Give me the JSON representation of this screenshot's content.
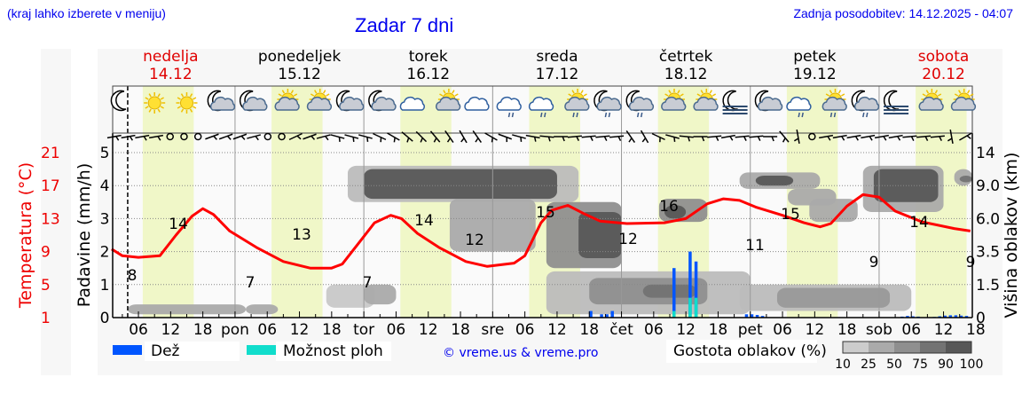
{
  "header": {
    "hint": "(kraj lahko izberete v meniju)",
    "title": "Zadar 7 dni",
    "updated": "Zadnja posodobitev: 14.12.2025 - 04:07"
  },
  "days": [
    {
      "name": "nedelja",
      "date": "14.12",
      "weekend": true
    },
    {
      "name": "ponedeljek",
      "date": "15.12",
      "weekend": false
    },
    {
      "name": "torek",
      "date": "16.12",
      "weekend": false
    },
    {
      "name": "sreda",
      "date": "17.12",
      "weekend": false
    },
    {
      "name": "četrtek",
      "date": "18.12",
      "weekend": false
    },
    {
      "name": "petek",
      "date": "19.12",
      "weekend": false
    },
    {
      "name": "sobota",
      "date": "20.12",
      "weekend": true
    }
  ],
  "axes": {
    "temp_label": "Temperatura (°C)",
    "precip_label": "Padavine (mm/h)",
    "cloud_label": "Višina oblakov (km)",
    "temp_ticks": [
      "21",
      "17",
      "13",
      "9",
      "5",
      "1"
    ],
    "precip_ticks": [
      "5",
      "4",
      "3",
      "2",
      "1",
      "0"
    ],
    "cloud_ticks": [
      "14",
      "9.0",
      "6.0",
      "3.5",
      "1.5",
      "0"
    ],
    "x_ticks": [
      "06",
      "12",
      "18",
      "pon",
      "06",
      "12",
      "18",
      "tor",
      "06",
      "12",
      "18",
      "sre",
      "06",
      "12",
      "18",
      "čet",
      "06",
      "12",
      "18",
      "pet",
      "06",
      "12",
      "18",
      "sob",
      "06",
      "12",
      "18"
    ]
  },
  "legend": {
    "rain": "Dež",
    "rain_color": "#0055ff",
    "shower": "Možnost ploh",
    "shower_color": "#11ddcc",
    "copyright": "© vreme.us & vreme.pro",
    "density_label": "Gostota oblakov (%)",
    "density_ticks": [
      "10",
      "25",
      "50",
      "75",
      "90",
      "100"
    ],
    "density_colors": [
      "#cccccc",
      "#aaaaaa",
      "#8f8f8f",
      "#737373",
      "#575757"
    ]
  },
  "icons": [
    "moon",
    "sun",
    "sun",
    "moon-cloud",
    "moon-cloud",
    "sun-cloud",
    "sun-cloud",
    "moon-cloud",
    "moon-cloud",
    "cloud",
    "sun-cloud",
    "cloud",
    "cloud-rain",
    "cloud-rain",
    "sun-cloud-rain",
    "moon-cloud-rain",
    "moon-cloud-rain",
    "sun-cloud",
    "sun-cloud",
    "moon-fog",
    "moon-cloud",
    "cloud-rain",
    "sun-cloud-rain",
    "moon-cloud-rain",
    "moon-fog",
    "sun-cloud",
    "sun-cloud",
    "moon-fog"
  ],
  "chart_data": {
    "type": "line",
    "title": "Zadar 7 dni",
    "x_range_hours": [
      1,
      161
    ],
    "temperature": {
      "name": "Temperatura (°C)",
      "color": "#ff0000",
      "ylim": [
        -1,
        23
      ],
      "points_hours_values": [
        [
          1,
          9.3
        ],
        [
          3,
          8.5
        ],
        [
          6,
          8.3
        ],
        [
          10,
          8.5
        ],
        [
          13,
          11
        ],
        [
          16,
          13.3
        ],
        [
          18,
          14.2
        ],
        [
          20,
          13.5
        ],
        [
          23,
          11.5
        ],
        [
          28,
          9.5
        ],
        [
          33,
          7.8
        ],
        [
          38,
          7
        ],
        [
          42,
          7
        ],
        [
          44,
          7.5
        ],
        [
          47,
          10
        ],
        [
          50,
          12.5
        ],
        [
          53,
          13.4
        ],
        [
          55,
          13
        ],
        [
          58,
          11.2
        ],
        [
          62,
          9.5
        ],
        [
          67,
          7.8
        ],
        [
          71,
          7.2
        ],
        [
          76,
          7.6
        ],
        [
          78,
          8.5
        ],
        [
          81,
          12.5
        ],
        [
          83,
          14
        ],
        [
          86,
          14.6
        ],
        [
          89,
          13.6
        ],
        [
          92,
          12.7
        ],
        [
          97,
          12.4
        ],
        [
          104,
          12.5
        ],
        [
          108,
          13
        ],
        [
          112,
          14.8
        ],
        [
          115,
          15.4
        ],
        [
          118,
          15.2
        ],
        [
          121,
          14.4
        ],
        [
          126,
          13.4
        ],
        [
          130,
          12.5
        ],
        [
          133,
          12
        ],
        [
          135,
          12.4
        ],
        [
          138,
          14.5
        ],
        [
          141,
          15.9
        ],
        [
          144,
          15.6
        ],
        [
          147,
          13.9
        ],
        [
          152,
          12.6
        ],
        [
          158,
          11.8
        ],
        [
          161,
          11.5
        ]
      ],
      "labels": [
        {
          "hour": 6,
          "value": 8,
          "type": "min"
        },
        {
          "hour": 18,
          "value": 14,
          "type": "max"
        },
        {
          "hour": 40,
          "value": 7,
          "type": "min"
        },
        {
          "hour": 54,
          "value": 13,
          "type": "max"
        },
        {
          "hour": 74,
          "value": 7,
          "type": "min"
        },
        {
          "hour": 85,
          "value": 14,
          "type": "max"
        },
        {
          "hour": 97,
          "value": 12,
          "type": "min"
        },
        {
          "hour": 112,
          "value": 15,
          "type": "max"
        },
        {
          "hour": 131,
          "value": 12,
          "type": "min"
        },
        {
          "hour": 138,
          "value": 16,
          "type": "max"
        },
        {
          "hour": 155,
          "value": 11,
          "type": "min"
        },
        {
          "hour": 162,
          "value": 15,
          "type": "max"
        },
        {
          "hour": 180,
          "value": 9,
          "type": "min"
        },
        {
          "hour": 190,
          "value": 14,
          "type": "max"
        },
        {
          "hour": 204,
          "value": 9,
          "type": "min"
        }
      ]
    },
    "precipitation": {
      "name": "Padavine (mm/h)",
      "ylim": [
        0,
        5.5
      ],
      "rain_bars": [
        {
          "hour": 91,
          "value": 0.2
        },
        [
          0
        ],
        {
          "hour": 94,
          "value": 0.1
        },
        {
          "hour": 95,
          "value": 0.1
        },
        {
          "hour": 96,
          "value": 0.2
        },
        {
          "hour": 106,
          "value": 1.5
        },
        {
          "hour": 109,
          "value": 2.0
        },
        {
          "hour": 110,
          "value": 1.7
        },
        {
          "hour": 119,
          "value": 0.1
        },
        {
          "hour": 120,
          "value": 0.1
        },
        {
          "hour": 121,
          "value": 0.1
        }
      ],
      "shower_bars": [
        {
          "hour": 106,
          "value": 0.2
        },
        {
          "hour": 109,
          "value": 0.6
        },
        {
          "hour": 110,
          "value": 0.6
        }
      ]
    }
  }
}
